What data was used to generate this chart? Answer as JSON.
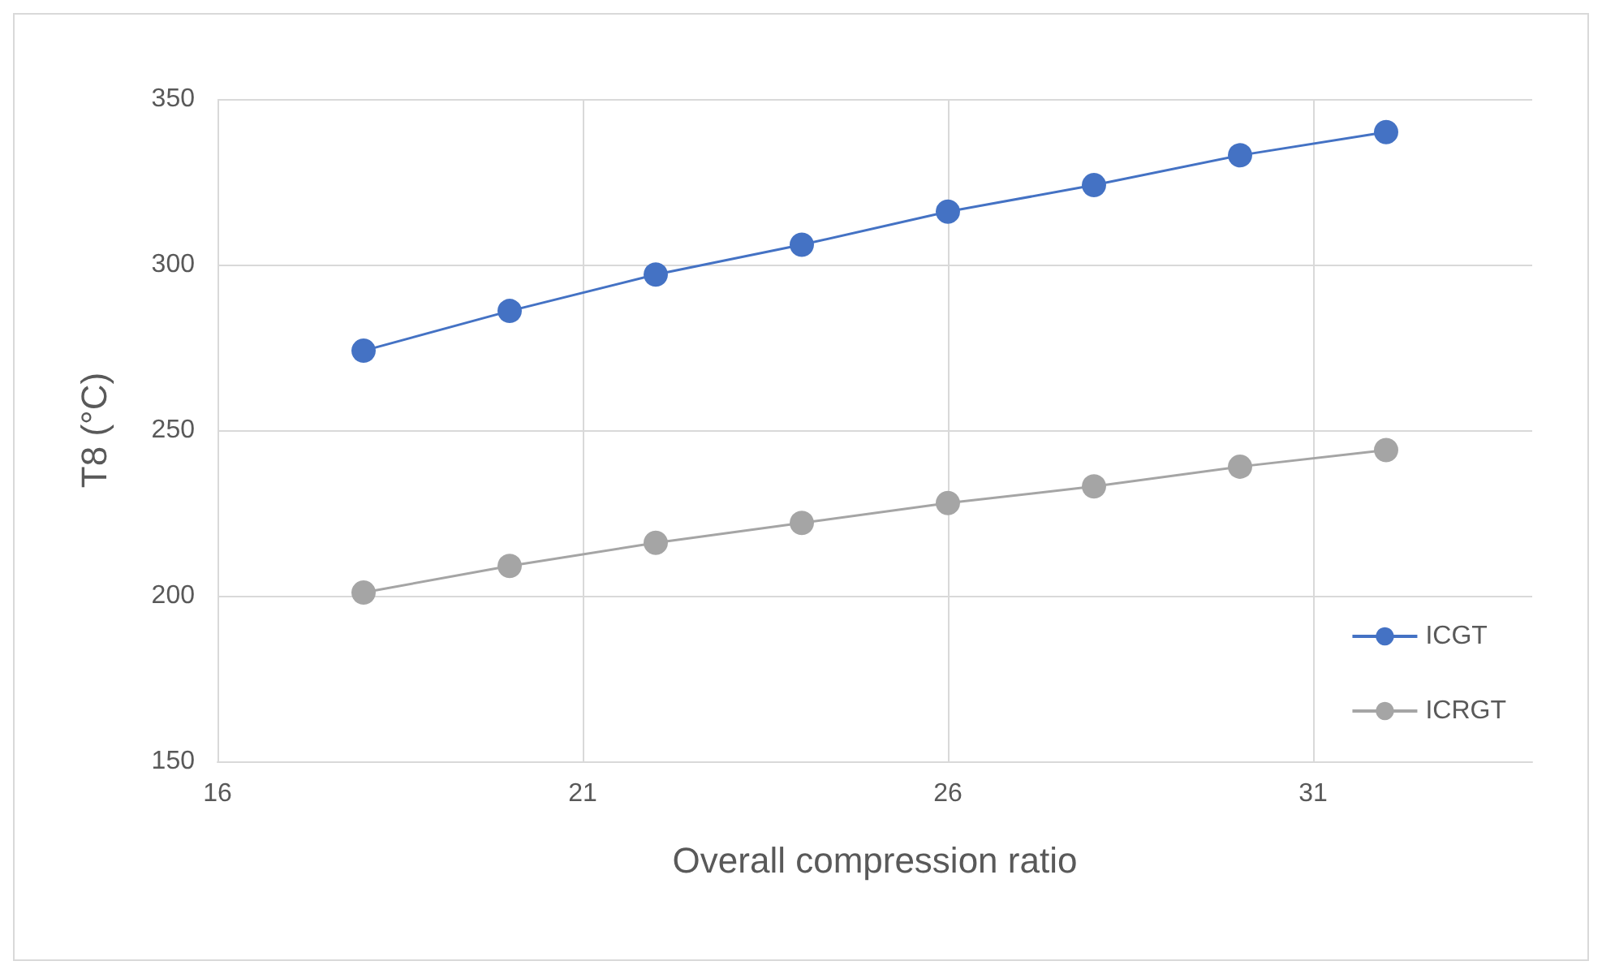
{
  "chart_data": {
    "type": "line",
    "xlabel": "Overall compression ratio",
    "ylabel": "T8 (°C)",
    "x": [
      18,
      20,
      22,
      24,
      26,
      28,
      30,
      32
    ],
    "series": [
      {
        "name": "ICGT",
        "color": "#4472c4",
        "values": [
          274,
          286,
          297,
          306,
          316,
          324,
          333,
          340
        ]
      },
      {
        "name": "ICRGT",
        "color": "#a5a5a5",
        "values": [
          201,
          209,
          216,
          222,
          228,
          233,
          239,
          244
        ]
      }
    ],
    "xlim": [
      16,
      34
    ],
    "xticks": [
      16,
      21,
      26,
      31
    ],
    "ylim": [
      150,
      350
    ],
    "yticks": [
      150,
      200,
      250,
      300,
      350
    ],
    "grid": true,
    "legend": "bottom right",
    "marker": "circle",
    "line_style": "solid"
  }
}
